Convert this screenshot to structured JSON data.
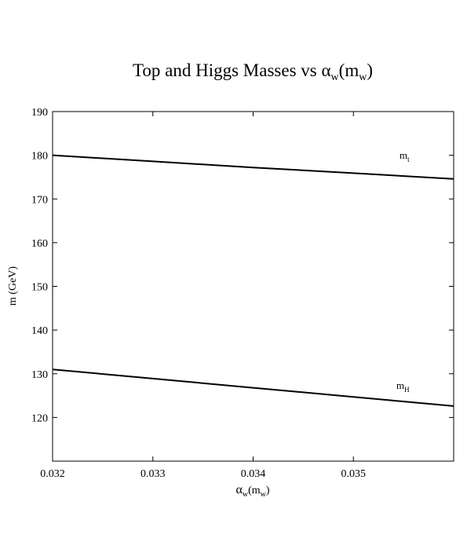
{
  "chart_data": {
    "type": "line",
    "title": {
      "prefix": "Top and Higgs Masses vs ",
      "greek": "α",
      "sub1": "w",
      "open": "(m",
      "sub2": "w",
      "close": ")"
    },
    "xlabel": {
      "greek": "α",
      "sub1": "w",
      "open": "(m",
      "sub2": "w",
      "close": ")"
    },
    "ylabel": "m (GeV)",
    "xlim": [
      0.032,
      0.036
    ],
    "ylim": [
      110,
      190
    ],
    "x_ticks": [
      "0.032",
      "0.033",
      "0.034",
      "0.035"
    ],
    "y_ticks": [
      "120",
      "130",
      "140",
      "150",
      "160",
      "170",
      "180",
      "190"
    ],
    "grid": false,
    "series": [
      {
        "label_main": "m",
        "label_sub": "t",
        "x": [
          0.032,
          0.033,
          0.034,
          0.035,
          0.036
        ],
        "y": [
          180.0,
          178.6,
          177.2,
          175.9,
          174.6
        ],
        "color": "#000000"
      },
      {
        "label_main": "m",
        "label_sub": "H",
        "x": [
          0.032,
          0.033,
          0.034,
          0.035,
          0.036
        ],
        "y": [
          131.0,
          128.9,
          126.8,
          124.7,
          122.6
        ],
        "color": "#000000"
      }
    ]
  }
}
